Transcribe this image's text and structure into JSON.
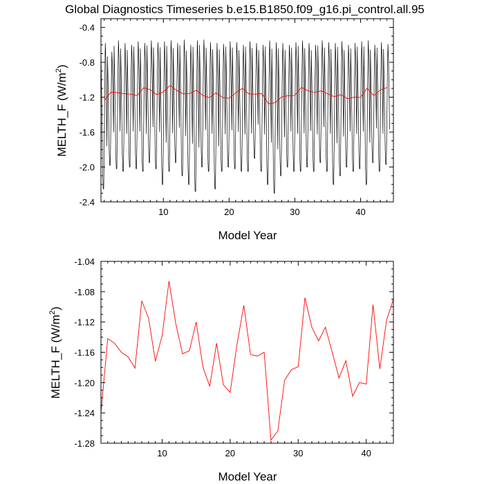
{
  "figure": {
    "title": "Global Diagnostics Timeseries b.e15.B1850.f09_g16.pi_control.all.95"
  },
  "chart_data": [
    {
      "type": "line",
      "xlabel": "Model Year",
      "ylabel": "MELTH_F (W/m",
      "ylabel_sup": "2",
      "ylabel_tail": ")",
      "xlim": [
        0.5,
        45.0
      ],
      "ylim": [
        -2.4,
        -0.3
      ],
      "xticks": [
        "10",
        "20",
        "30",
        "40"
      ],
      "yticks": [
        "-0.4",
        "-0.8",
        "-1.2",
        "-1.6",
        "-2.0",
        "-2.4"
      ],
      "colors": {
        "monthly": "#000000",
        "annual": "#ff0000"
      },
      "monthly_cycle": {
        "period_years": 1,
        "annual_mean_offsets": [
          0.55,
          0.25,
          -0.05,
          -0.45,
          -0.9,
          -0.65,
          -0.2,
          0.3,
          0.6,
          0.45,
          0.1,
          -0.25
        ],
        "min_values": [
          -2.25,
          -1.98,
          -2.02,
          -2.05,
          -2.0,
          -2.02,
          -2.05,
          -1.95,
          -2.02,
          -2.2,
          -2.05,
          -1.95,
          -2.1,
          -2.2,
          -2.28,
          -2.0,
          -2.05,
          -2.25,
          -2.05,
          -2.0,
          -2.02,
          -2.05,
          -2.05,
          -1.9,
          -2.05,
          -2.2,
          -2.3,
          -2.1,
          -2.0,
          -2.05,
          -2.05,
          -2.0,
          -2.05,
          -1.95,
          -2.05,
          -2.2,
          -2.1,
          -2.0,
          -2.05,
          -2.02,
          -2.2,
          -1.95,
          -2.05,
          -1.97
        ],
        "max_values": [
          -0.58,
          -0.68,
          -0.55,
          -0.58,
          -0.6,
          -0.56,
          -0.58,
          -0.55,
          -0.57,
          -0.56,
          -0.55,
          -0.58,
          -0.54,
          -0.6,
          -0.55,
          -0.54,
          -0.57,
          -0.58,
          -0.59,
          -0.56,
          -0.57,
          -0.6,
          -0.56,
          -0.58,
          -0.6,
          -0.55,
          -0.57,
          -0.58,
          -0.6,
          -0.57,
          -0.55,
          -0.58,
          -0.6,
          -0.55,
          -0.57,
          -0.58,
          -0.56,
          -0.6,
          -0.58,
          -0.56,
          -0.55,
          -0.6,
          -0.57,
          -0.59
        ]
      },
      "annual_series_ref": "bottom"
    },
    {
      "type": "line",
      "xlabel": "Model Year",
      "ylabel": "MELTH_F (W/m",
      "ylabel_sup": "2",
      "ylabel_tail": ")",
      "xlim": [
        1.0,
        44.0
      ],
      "ylim": [
        -1.28,
        -1.04
      ],
      "xticks": [
        "10",
        "20",
        "30",
        "40"
      ],
      "yticks": [
        "-1.04",
        "-1.08",
        "-1.12",
        "-1.16",
        "-1.20",
        "-1.24",
        "-1.28"
      ],
      "color": "#ff0000",
      "x": [
        1,
        2,
        3,
        4,
        5,
        6,
        7,
        8,
        9,
        10,
        11,
        12,
        13,
        14,
        15,
        16,
        17,
        18,
        19,
        20,
        21,
        22,
        23,
        24,
        25,
        26,
        27,
        28,
        29,
        30,
        31,
        32,
        33,
        34,
        35,
        36,
        37,
        38,
        39,
        40,
        41,
        42,
        43,
        44
      ],
      "values": [
        -1.24,
        -1.142,
        -1.148,
        -1.16,
        -1.166,
        -1.181,
        -1.092,
        -1.115,
        -1.172,
        -1.138,
        -1.066,
        -1.122,
        -1.162,
        -1.158,
        -1.12,
        -1.18,
        -1.205,
        -1.148,
        -1.203,
        -1.213,
        -1.15,
        -1.098,
        -1.163,
        -1.165,
        -1.16,
        -1.276,
        -1.264,
        -1.197,
        -1.183,
        -1.179,
        -1.088,
        -1.127,
        -1.145,
        -1.127,
        -1.16,
        -1.194,
        -1.171,
        -1.218,
        -1.2,
        -1.202,
        -1.097,
        -1.182,
        -1.117,
        -1.09
      ]
    }
  ]
}
